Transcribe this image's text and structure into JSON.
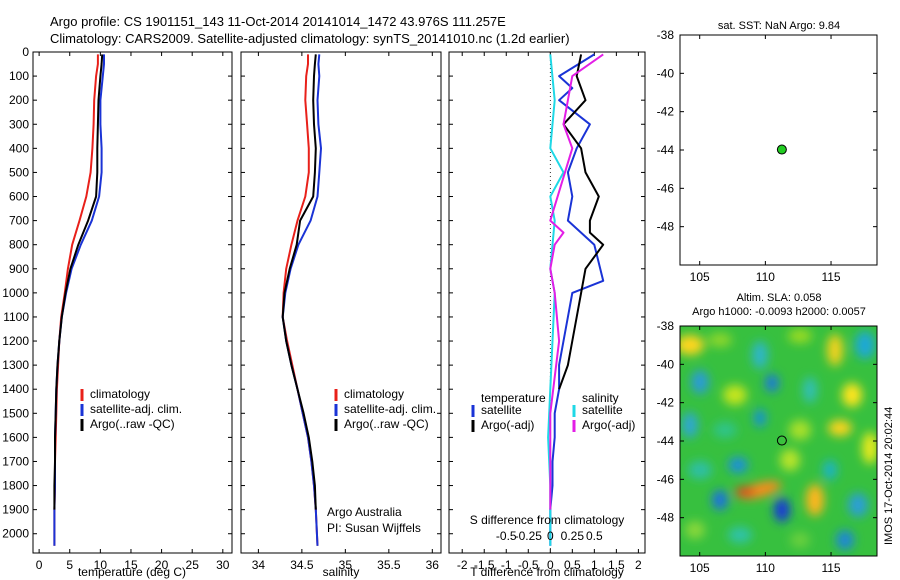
{
  "header": {
    "line1": "Argo profile: CS 1901151_143 11-Oct-2014 20141014_1472 43.976S 111.257E",
    "line2": "Climatology: CARS2009. Satellite-adjusted climatology: synTS_20141010.nc (1.2d earlier)"
  },
  "colors": {
    "climatology": "#e8201a",
    "satellite": "#1a33d6",
    "argo": "#000000",
    "sal_satellite": "#1fd8e6",
    "sal_argo": "#e31ee6"
  },
  "chart_data": [
    {
      "type": "line",
      "id": "temperature",
      "xlabel": "temperature (deg C)",
      "xticks": [
        0,
        5,
        10,
        15,
        20,
        25,
        30
      ],
      "xlim": [
        -1,
        31.5
      ],
      "ylim": [
        0,
        2080
      ],
      "yticks": [
        0,
        100,
        200,
        300,
        400,
        500,
        600,
        700,
        800,
        900,
        1000,
        1100,
        1200,
        1300,
        1400,
        1500,
        1600,
        1700,
        1800,
        1900,
        2000
      ],
      "legend": [
        "climatology",
        "satellite-adj. clim.",
        "Argo(..raw -QC)"
      ],
      "series": [
        {
          "name": "climatology",
          "color": "#e8201a",
          "x": [
            9.6,
            9.6,
            9.3,
            9.0,
            8.9,
            8.7,
            8.4,
            7.7,
            6.6,
            5.4,
            4.7,
            4.2,
            3.6,
            3.3,
            3.1,
            2.9,
            2.8,
            2.7,
            2.6,
            2.6,
            2.5,
            2.5
          ],
          "y": [
            10,
            50,
            100,
            200,
            300,
            400,
            500,
            600,
            700,
            800,
            900,
            1000,
            1100,
            1200,
            1300,
            1400,
            1500,
            1600,
            1700,
            1800,
            1900,
            2050
          ]
        },
        {
          "name": "satellite-adj. clim.",
          "color": "#1a33d6",
          "x": [
            10.6,
            10.6,
            10.4,
            10.0,
            10.0,
            10.2,
            10.2,
            9.8,
            8.6,
            6.8,
            5.3,
            4.4,
            3.7,
            3.3,
            3.0,
            2.8,
            2.7,
            2.6,
            2.6,
            2.6,
            2.5,
            2.5
          ],
          "y": [
            10,
            50,
            100,
            200,
            300,
            400,
            500,
            600,
            700,
            800,
            900,
            1000,
            1100,
            1200,
            1300,
            1400,
            1500,
            1600,
            1700,
            1800,
            1900,
            2050
          ]
        },
        {
          "name": "Argo(..raw -QC)",
          "color": "#000000",
          "x": [
            10.3,
            10.2,
            10.0,
            9.7,
            9.6,
            9.5,
            9.5,
            9.3,
            8.0,
            6.4,
            5.1,
            4.3,
            3.7,
            3.3,
            3.0,
            2.8,
            2.7,
            2.6,
            2.6,
            2.5,
            2.5
          ],
          "y": [
            10,
            50,
            100,
            200,
            300,
            400,
            500,
            600,
            700,
            800,
            900,
            1000,
            1100,
            1200,
            1300,
            1400,
            1500,
            1600,
            1700,
            1800,
            1900
          ]
        }
      ]
    },
    {
      "type": "line",
      "id": "salinity",
      "xlabel": "salinity",
      "xticks": [
        34,
        34.5,
        35,
        35.5,
        36
      ],
      "xlim": [
        33.8,
        36.1
      ],
      "ylim": [
        0,
        2080
      ],
      "legend": [
        "climatology",
        "satellite-adj. clim.",
        "Argo(..raw -QC)"
      ],
      "annotation": [
        "Argo Australia",
        "PI: Susan Wijffels"
      ],
      "series": [
        {
          "name": "climatology",
          "color": "#e8201a",
          "x": [
            34.57,
            34.57,
            34.55,
            34.54,
            34.56,
            34.58,
            34.58,
            34.54,
            34.45,
            34.38,
            34.32,
            34.29,
            34.28,
            34.33,
            34.39,
            34.45,
            34.51,
            34.57,
            34.61,
            34.64,
            34.66,
            34.68
          ],
          "y": [
            10,
            50,
            100,
            200,
            300,
            400,
            500,
            600,
            700,
            800,
            900,
            1000,
            1100,
            1200,
            1300,
            1400,
            1500,
            1600,
            1700,
            1800,
            1900,
            2050
          ]
        },
        {
          "name": "satellite-adj. clim.",
          "color": "#1a33d6",
          "x": [
            34.7,
            34.69,
            34.7,
            34.68,
            34.69,
            34.72,
            34.7,
            34.68,
            34.6,
            34.46,
            34.37,
            34.31,
            34.28,
            34.32,
            34.38,
            34.45,
            34.51,
            34.57,
            34.61,
            34.64,
            34.66,
            34.68
          ],
          "y": [
            10,
            50,
            100,
            200,
            300,
            400,
            500,
            600,
            700,
            800,
            900,
            1000,
            1100,
            1200,
            1300,
            1400,
            1500,
            1600,
            1700,
            1800,
            1900,
            2050
          ]
        },
        {
          "name": "Argo(..raw -QC)",
          "color": "#000000",
          "x": [
            34.66,
            34.65,
            34.64,
            34.63,
            34.64,
            34.66,
            34.65,
            34.63,
            34.48,
            34.44,
            34.36,
            34.3,
            34.28,
            34.32,
            34.38,
            34.45,
            34.52,
            34.58,
            34.62,
            34.65,
            34.66
          ],
          "y": [
            10,
            50,
            100,
            200,
            300,
            400,
            500,
            600,
            700,
            800,
            900,
            1000,
            1100,
            1200,
            1300,
            1400,
            1500,
            1600,
            1700,
            1800,
            1900
          ]
        }
      ]
    },
    {
      "type": "line",
      "id": "difference",
      "xlabel": "T difference from climatology",
      "xticks": [
        -2,
        -1.5,
        -1,
        -0.5,
        0,
        0.5,
        1,
        1.5,
        2
      ],
      "xlim": [
        -2.3,
        2.15
      ],
      "top_axis_label": "S difference from climatology",
      "top_ticks": [
        "-0.5",
        "-0.25",
        "0",
        "0.25",
        "0.5"
      ],
      "top_tick_values": [
        -1,
        -0.5,
        0,
        0.5,
        1
      ],
      "ylim": [
        0,
        2080
      ],
      "legend_left_title": "temperature",
      "legend_right_title": "salinity",
      "legend": [
        "satellite",
        "Argo(-adj)",
        "satellite",
        "Argo(-adj)"
      ],
      "series": [
        {
          "name": "temperature satellite",
          "color": "#1a33d6",
          "x": [
            1.0,
            0.2,
            0.5,
            0.2,
            0.9,
            0.6,
            0.4,
            0.5,
            0.4,
            1.0,
            1.2,
            0.5,
            0.4,
            0.3,
            0.2,
            0.2,
            0.1,
            0.1,
            0.05,
            0.05,
            0.0,
            0.0
          ],
          "y": [
            10,
            100,
            150,
            200,
            300,
            400,
            500,
            600,
            700,
            800,
            950,
            1000,
            1100,
            1200,
            1300,
            1400,
            1500,
            1600,
            1700,
            1800,
            1900,
            2050
          ]
        },
        {
          "name": "temperature Argo(-adj)",
          "color": "#000000",
          "x": [
            0.7,
            0.6,
            0.8,
            0.3,
            0.7,
            0.8,
            1.1,
            0.9,
            0.9,
            1.2,
            0.8,
            0.7,
            0.6,
            0.5,
            0.4,
            0.2
          ],
          "y": [
            10,
            100,
            200,
            300,
            400,
            500,
            600,
            700,
            750,
            800,
            900,
            1000,
            1100,
            1200,
            1300,
            1400
          ]
        },
        {
          "name": "salinity satellite",
          "color": "#1fd8e6",
          "x": [
            0.0,
            0.1,
            0.0,
            0.3,
            0.0,
            0.1,
            0.05,
            0.0,
            0.1,
            0.05,
            0.0,
            -0.05,
            0.0,
            0.0
          ],
          "y": [
            10,
            200,
            400,
            500,
            600,
            700,
            800,
            900,
            1000,
            1200,
            1400,
            1600,
            1800,
            2050
          ]
        },
        {
          "name": "salinity Argo(-adj)",
          "color": "#e31ee6",
          "x": [
            1.2,
            0.5,
            0.4,
            0.3,
            0.5,
            0.0,
            0.3,
            0.1,
            0.0,
            0.1,
            0.2,
            0.0,
            0.0
          ],
          "y": [
            10,
            100,
            200,
            300,
            400,
            700,
            750,
            800,
            900,
            1000,
            1200,
            1500,
            1900
          ]
        }
      ]
    },
    {
      "type": "scatter",
      "id": "sst_map",
      "title": "sat. SST: NaN Argo: 9.84",
      "xticks": [
        105,
        110,
        115
      ],
      "yticks": [
        -38,
        -40,
        -42,
        -44,
        -46,
        -48
      ],
      "xlim": [
        103.5,
        118.5
      ],
      "ylim": [
        -50,
        -38
      ],
      "point": {
        "lon": 111.257,
        "lat": -43.976,
        "color": "#22cc22"
      }
    },
    {
      "type": "heatmap",
      "id": "sla_map",
      "title_line1": "Altim. SLA: 0.058",
      "title_line2": "Argo h1000: -0.0093 h2000: 0.0057",
      "xticks": [
        105,
        110,
        115
      ],
      "yticks": [
        -38,
        -40,
        -42,
        -44,
        -46,
        -48
      ],
      "xlim": [
        103.5,
        118.5
      ],
      "ylim": [
        -50,
        -38
      ],
      "point": {
        "lon": 111.257,
        "lat": -43.976
      }
    }
  ],
  "side_label": "IMOS 17-Oct-2014 20:02:44"
}
